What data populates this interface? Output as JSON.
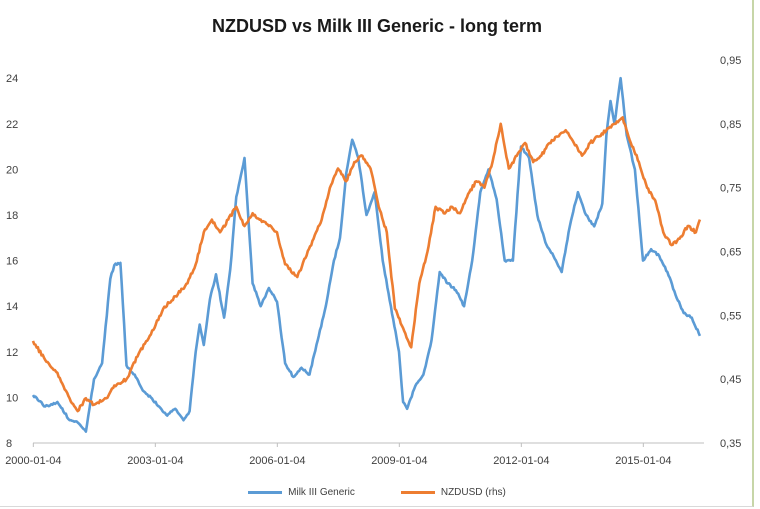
{
  "chart_data": {
    "type": "line",
    "title": "NZDUSD vs Milk III Generic - long term",
    "xlabel": "",
    "ylabel": "",
    "x_ticks": [
      "2000-01-04",
      "2003-01-04",
      "2006-01-04",
      "2009-01-04",
      "2012-01-04",
      "2015-01-04"
    ],
    "y_left": {
      "ticks": [
        "8",
        "10",
        "12",
        "14",
        "16",
        "18",
        "20",
        "22",
        "24"
      ],
      "range": [
        8,
        24.8
      ]
    },
    "y_right": {
      "ticks": [
        "0,35",
        "0,45",
        "0,55",
        "0,65",
        "0,75",
        "0,85",
        "0,95"
      ],
      "range": [
        0.35,
        0.95
      ]
    },
    "x_range": [
      2000.0,
      2016.5
    ],
    "grid": false,
    "legend_position": "bottom",
    "series": [
      {
        "name": "Milk III Generic",
        "axis": "left",
        "color": "#5b9bd5",
        "x": [
          2000.0,
          2000.3,
          2000.6,
          2000.9,
          2001.1,
          2001.3,
          2001.5,
          2001.7,
          2001.9,
          2002.0,
          2002.15,
          2002.3,
          2002.5,
          2002.7,
          2002.9,
          2003.1,
          2003.3,
          2003.5,
          2003.7,
          2003.85,
          2004.0,
          2004.1,
          2004.2,
          2004.35,
          2004.5,
          2004.7,
          2004.85,
          2005.0,
          2005.2,
          2005.4,
          2005.6,
          2005.8,
          2006.0,
          2006.2,
          2006.4,
          2006.6,
          2006.8,
          2007.0,
          2007.2,
          2007.4,
          2007.55,
          2007.7,
          2007.85,
          2008.0,
          2008.2,
          2008.4,
          2008.6,
          2008.8,
          2009.0,
          2009.1,
          2009.2,
          2009.4,
          2009.6,
          2009.8,
          2010.0,
          2010.2,
          2010.4,
          2010.6,
          2010.8,
          2011.0,
          2011.2,
          2011.4,
          2011.6,
          2011.8,
          2012.0,
          2012.2,
          2012.4,
          2012.6,
          2012.8,
          2013.0,
          2013.2,
          2013.4,
          2013.6,
          2013.8,
          2014.0,
          2014.1,
          2014.2,
          2014.3,
          2014.45,
          2014.6,
          2014.8,
          2015.0,
          2015.2,
          2015.4,
          2015.6,
          2015.8,
          2016.0,
          2016.2,
          2016.4
        ],
        "y": [
          10.1,
          9.6,
          9.8,
          9.0,
          8.9,
          8.5,
          10.8,
          11.5,
          15.2,
          15.8,
          15.9,
          11.4,
          11.0,
          10.3,
          10.0,
          9.6,
          9.2,
          9.5,
          9.0,
          9.4,
          12.0,
          13.2,
          12.3,
          14.3,
          15.4,
          13.5,
          15.6,
          18.8,
          20.5,
          15.0,
          14.0,
          14.8,
          14.2,
          11.5,
          10.9,
          11.3,
          11.0,
          12.5,
          14.0,
          16.0,
          17.0,
          19.8,
          21.3,
          20.5,
          18.0,
          19.0,
          16.0,
          14.0,
          12.0,
          9.8,
          9.5,
          10.5,
          11.0,
          12.5,
          15.5,
          15.0,
          14.7,
          14.0,
          16.0,
          19.0,
          20.0,
          18.7,
          16.0,
          16.0,
          21.0,
          20.5,
          18.0,
          16.8,
          16.2,
          15.5,
          17.5,
          19.0,
          18.0,
          17.5,
          18.5,
          21.5,
          23.0,
          22.0,
          24.0,
          21.5,
          20.0,
          16.0,
          16.5,
          16.2,
          15.5,
          14.5,
          13.7,
          13.5,
          12.7
        ]
      },
      {
        "name": "NZDUSD (rhs)",
        "axis": "right",
        "color": "#ed7d31",
        "x": [
          2000.0,
          2000.3,
          2000.6,
          2000.9,
          2001.1,
          2001.3,
          2001.5,
          2001.8,
          2002.0,
          2002.3,
          2002.6,
          2002.9,
          2003.2,
          2003.5,
          2003.8,
          2004.0,
          2004.2,
          2004.4,
          2004.6,
          2004.8,
          2005.0,
          2005.2,
          2005.4,
          2005.6,
          2005.8,
          2006.0,
          2006.2,
          2006.5,
          2006.7,
          2006.9,
          2007.1,
          2007.3,
          2007.5,
          2007.7,
          2007.9,
          2008.1,
          2008.3,
          2008.5,
          2008.7,
          2008.9,
          2009.1,
          2009.3,
          2009.5,
          2009.7,
          2009.9,
          2010.1,
          2010.3,
          2010.5,
          2010.7,
          2010.9,
          2011.1,
          2011.3,
          2011.5,
          2011.7,
          2011.9,
          2012.1,
          2012.3,
          2012.5,
          2012.7,
          2012.9,
          2013.1,
          2013.3,
          2013.5,
          2013.7,
          2013.9,
          2014.1,
          2014.3,
          2014.5,
          2014.7,
          2014.9,
          2015.1,
          2015.3,
          2015.5,
          2015.7,
          2015.9,
          2016.1,
          2016.3,
          2016.4
        ],
        "y": [
          0.51,
          0.48,
          0.46,
          0.42,
          0.4,
          0.42,
          0.41,
          0.42,
          0.44,
          0.45,
          0.49,
          0.52,
          0.56,
          0.58,
          0.6,
          0.63,
          0.68,
          0.7,
          0.68,
          0.7,
          0.72,
          0.69,
          0.71,
          0.7,
          0.69,
          0.68,
          0.63,
          0.61,
          0.64,
          0.67,
          0.7,
          0.75,
          0.78,
          0.76,
          0.79,
          0.8,
          0.78,
          0.72,
          0.68,
          0.56,
          0.53,
          0.5,
          0.6,
          0.65,
          0.72,
          0.71,
          0.72,
          0.71,
          0.74,
          0.76,
          0.75,
          0.79,
          0.85,
          0.78,
          0.8,
          0.82,
          0.79,
          0.8,
          0.82,
          0.83,
          0.84,
          0.82,
          0.8,
          0.82,
          0.83,
          0.84,
          0.85,
          0.86,
          0.82,
          0.79,
          0.75,
          0.73,
          0.68,
          0.66,
          0.67,
          0.69,
          0.68,
          0.7
        ]
      }
    ]
  }
}
